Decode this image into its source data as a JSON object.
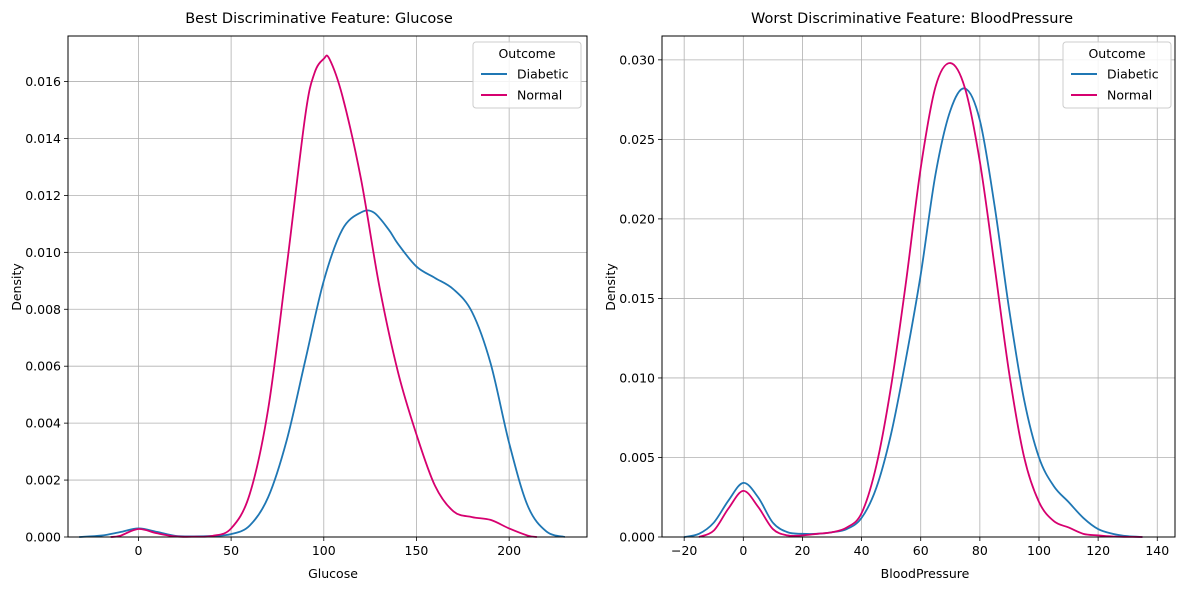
{
  "chart_data": [
    {
      "type": "line",
      "subtype": "kde",
      "title": "Best Discriminative Feature: Glucose",
      "xlabel": "Glucose",
      "ylabel": "Density",
      "xlim": [
        -38,
        242
      ],
      "ylim": [
        0,
        0.0176
      ],
      "xticks": [
        0,
        50,
        100,
        150,
        200
      ],
      "xtick_labels": [
        "0",
        "50",
        "100",
        "150",
        "200"
      ],
      "yticks": [
        0,
        0.002,
        0.004,
        0.006,
        0.008,
        0.01,
        0.012,
        0.014,
        0.016
      ],
      "ytick_labels": [
        "0.000",
        "0.002",
        "0.004",
        "0.006",
        "0.008",
        "0.010",
        "0.012",
        "0.014",
        "0.016"
      ],
      "grid": true,
      "legend": {
        "title": "Outcome",
        "position": "top-right"
      },
      "series": [
        {
          "name": "Diabetic",
          "color": "#1f77b4",
          "x": [
            -32,
            -20,
            -10,
            0,
            10,
            20,
            30,
            40,
            50,
            60,
            70,
            80,
            90,
            100,
            110,
            120,
            127,
            135,
            140,
            150,
            160,
            170,
            180,
            190,
            200,
            210,
            220,
            230
          ],
          "y": [
            0,
            5e-05,
            0.00017,
            0.0003,
            0.00018,
            4e-05,
            2e-05,
            4e-05,
            0.0001,
            0.0004,
            0.0014,
            0.0034,
            0.0062,
            0.009,
            0.0108,
            0.0114,
            0.0114,
            0.0108,
            0.0103,
            0.0095,
            0.0091,
            0.0087,
            0.0079,
            0.0061,
            0.0033,
            0.0011,
            0.0002,
            0
          ]
        },
        {
          "name": "Normal",
          "color": "#d6006f",
          "x": [
            -15,
            -10,
            0,
            10,
            20,
            30,
            40,
            50,
            60,
            70,
            80,
            90,
            95,
            100,
            103,
            110,
            120,
            130,
            140,
            150,
            160,
            170,
            180,
            190,
            200,
            210,
            215
          ],
          "y": [
            0,
            4e-05,
            0.00028,
            0.00013,
            2e-05,
            1e-05,
            4e-05,
            0.0003,
            0.0015,
            0.0045,
            0.0095,
            0.0148,
            0.0163,
            0.0168,
            0.0168,
            0.0155,
            0.0126,
            0.0088,
            0.0058,
            0.0036,
            0.0018,
            0.0009,
            0.0007,
            0.0006,
            0.0003,
            5e-05,
            0
          ]
        }
      ]
    },
    {
      "type": "line",
      "subtype": "kde",
      "title": "Worst Discriminative Feature: BloodPressure",
      "xlabel": "BloodPressure",
      "ylabel": "Density",
      "xlim": [
        -27.5,
        146
      ],
      "ylim": [
        0,
        0.0315
      ],
      "xticks": [
        -20,
        0,
        20,
        40,
        60,
        80,
        100,
        120,
        140
      ],
      "xtick_labels": [
        "−20",
        "0",
        "20",
        "40",
        "60",
        "80",
        "100",
        "120",
        "140"
      ],
      "yticks": [
        0,
        0.005,
        0.01,
        0.015,
        0.02,
        0.025,
        0.03
      ],
      "ytick_labels": [
        "0.000",
        "0.005",
        "0.010",
        "0.015",
        "0.020",
        "0.025",
        "0.030"
      ],
      "grid": true,
      "legend": {
        "title": "Outcome",
        "position": "top-right"
      },
      "series": [
        {
          "name": "Diabetic",
          "color": "#1f77b4",
          "x": [
            -20,
            -15,
            -10,
            -5,
            0,
            5,
            10,
            15,
            20,
            25,
            30,
            35,
            40,
            45,
            50,
            55,
            60,
            65,
            70,
            75,
            80,
            85,
            90,
            95,
            100,
            105,
            110,
            115,
            120,
            125,
            130,
            135
          ],
          "y": [
            0,
            0.0002,
            0.0009,
            0.0023,
            0.0034,
            0.0025,
            0.0009,
            0.0003,
            0.0002,
            0.0002,
            0.0003,
            0.0005,
            0.0012,
            0.0031,
            0.0065,
            0.0112,
            0.0165,
            0.0228,
            0.0268,
            0.0282,
            0.0262,
            0.0208,
            0.0142,
            0.0086,
            0.005,
            0.0032,
            0.0022,
            0.0012,
            0.0005,
            0.0002,
            5e-05,
            0
          ]
        },
        {
          "name": "Normal",
          "color": "#d6006f",
          "x": [
            -15,
            -10,
            -5,
            0,
            5,
            10,
            15,
            20,
            25,
            30,
            35,
            40,
            45,
            50,
            55,
            60,
            65,
            70,
            75,
            80,
            85,
            90,
            95,
            100,
            105,
            110,
            115,
            120,
            125,
            130,
            135
          ],
          "y": [
            0,
            0.0004,
            0.0018,
            0.0029,
            0.0019,
            0.0005,
            0.0001,
            0.0001,
            0.0002,
            0.0003,
            0.0006,
            0.0015,
            0.0045,
            0.0095,
            0.016,
            0.0232,
            0.0283,
            0.0298,
            0.0282,
            0.0236,
            0.017,
            0.0102,
            0.005,
            0.0022,
            0.001,
            0.0006,
            0.0002,
            0.0001,
            3e-05,
            1e-05,
            0
          ]
        }
      ]
    }
  ]
}
